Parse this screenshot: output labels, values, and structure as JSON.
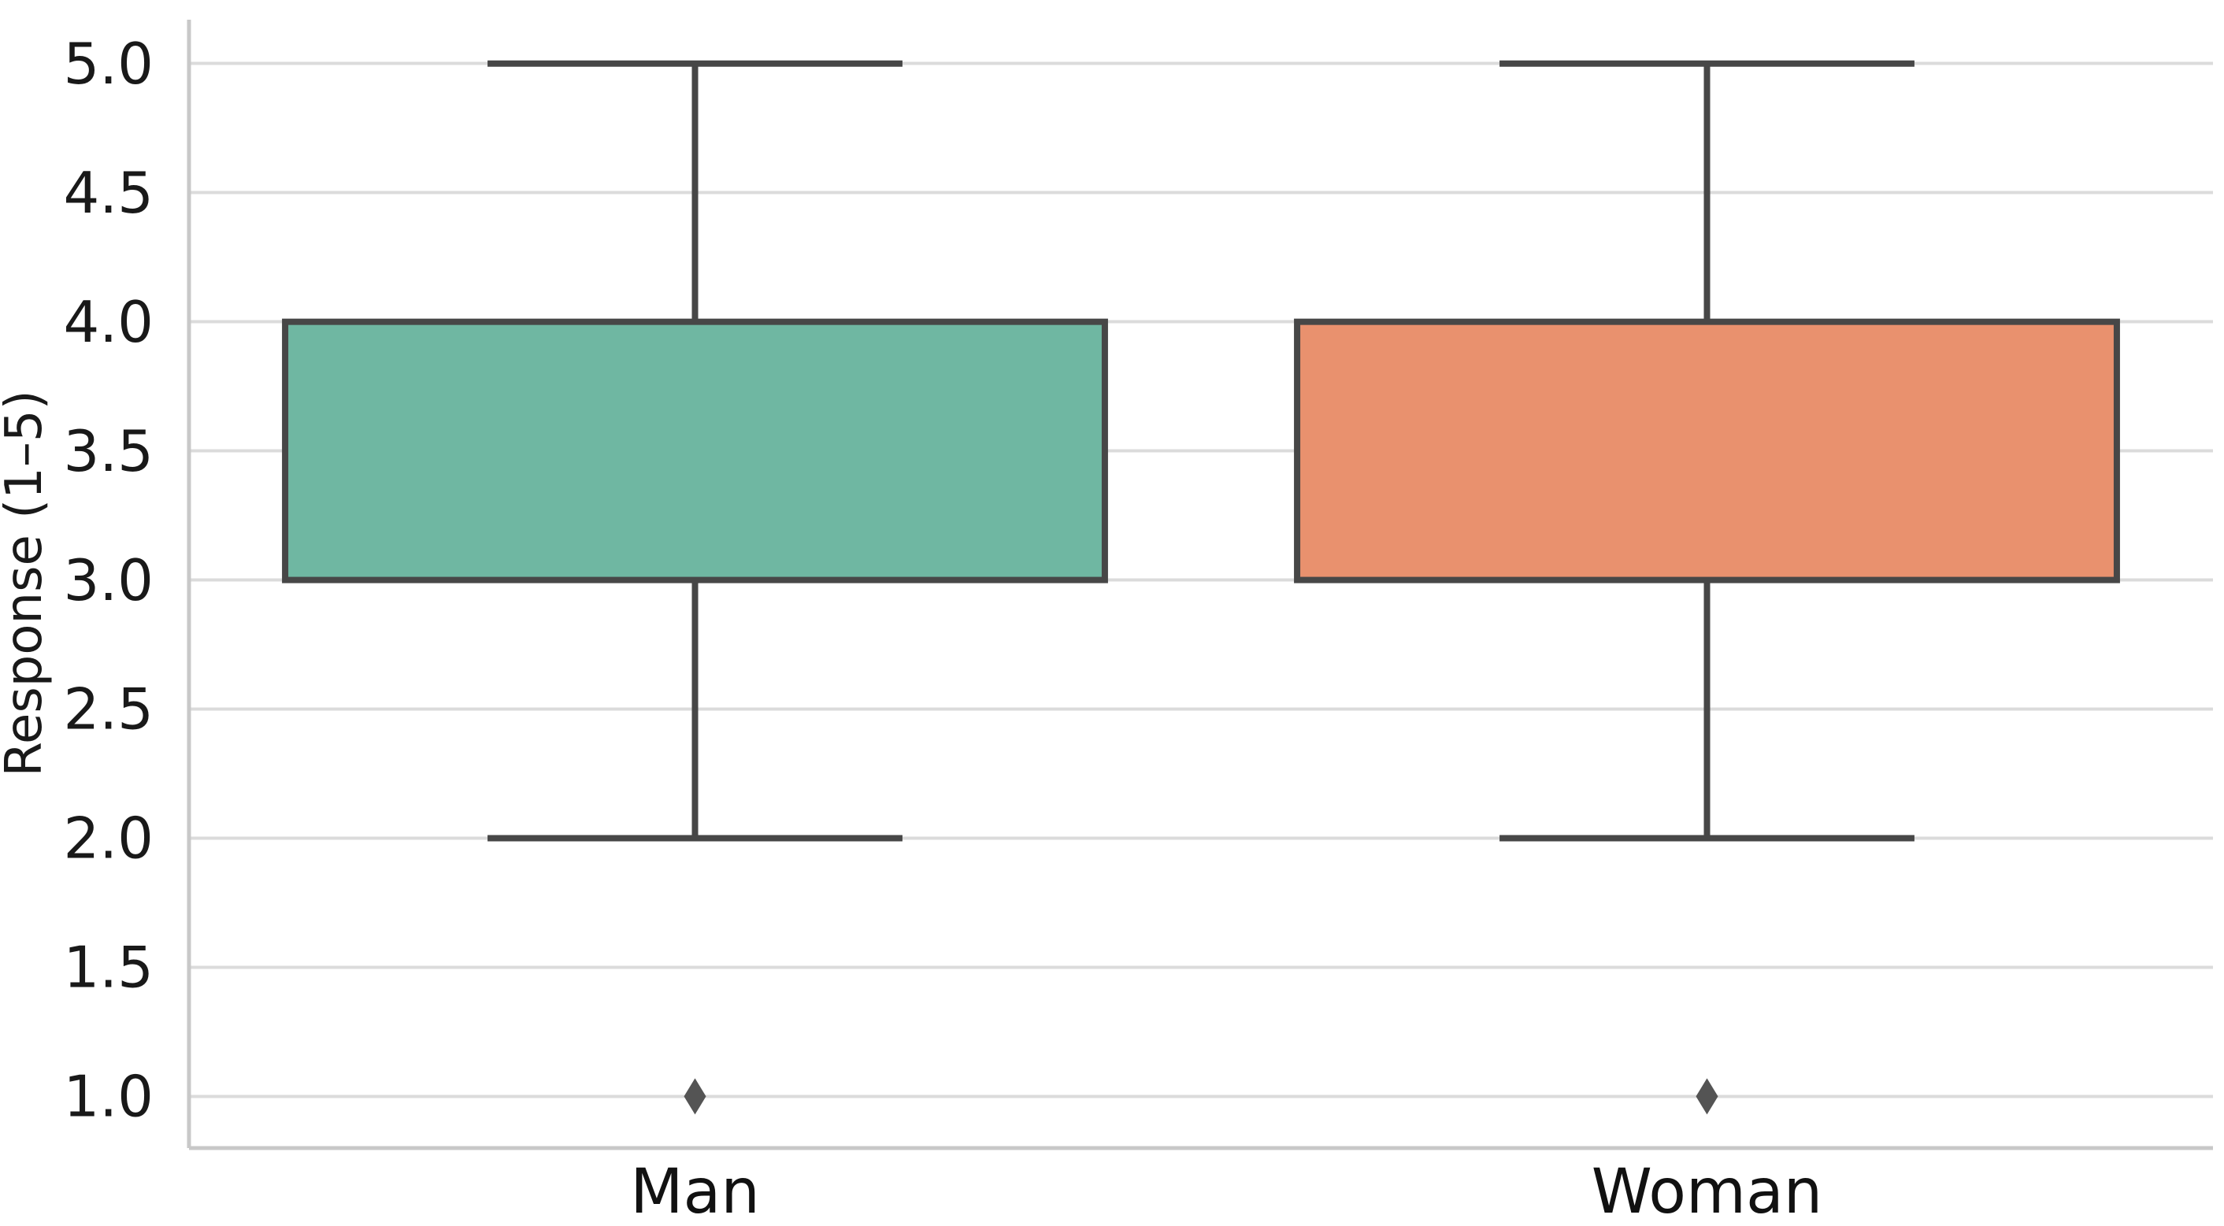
{
  "figure": {
    "background": "#ffffff"
  },
  "chart_data": {
    "type": "box",
    "title": "",
    "xlabel": "",
    "ylabel": "Response (1–5)",
    "categories": [
      "Man",
      "Woman"
    ],
    "y_tick_values": [
      1.0,
      1.5,
      2.0,
      2.5,
      3.0,
      3.5,
      4.0,
      4.5,
      5.0
    ],
    "y_tick_labels": [
      "1.0",
      "1.5",
      "2.0",
      "2.5",
      "3.0",
      "3.5",
      "4.0",
      "4.5",
      "5.0"
    ],
    "ylim": [
      0.8,
      5.17
    ],
    "grid": {
      "horizontal": true,
      "vertical": false
    },
    "legend": "none",
    "box_width": 0.81,
    "cap_width": 0.41,
    "outlier_marker": "thin-diamond",
    "series": [
      {
        "category": "Man",
        "q1": 3.0,
        "q3": 4.0,
        "whisker_low": 2.0,
        "whisker_high": 5.0,
        "outliers": [
          1.0
        ],
        "median_line_separately_visible": false,
        "fill_color": "#6FB7A2"
      },
      {
        "category": "Woman",
        "q1": 3.0,
        "q3": 4.0,
        "whisker_low": 2.0,
        "whisker_high": 5.0,
        "outliers": [
          1.0
        ],
        "median_line_separately_visible": false,
        "fill_color": "#E9916E"
      }
    ],
    "style": {
      "line_color": "#474747",
      "flier_color": "#545454",
      "grid_color": "#DBDBDB",
      "spine_color": "#C8C8C8",
      "text_color": "#191919"
    }
  }
}
